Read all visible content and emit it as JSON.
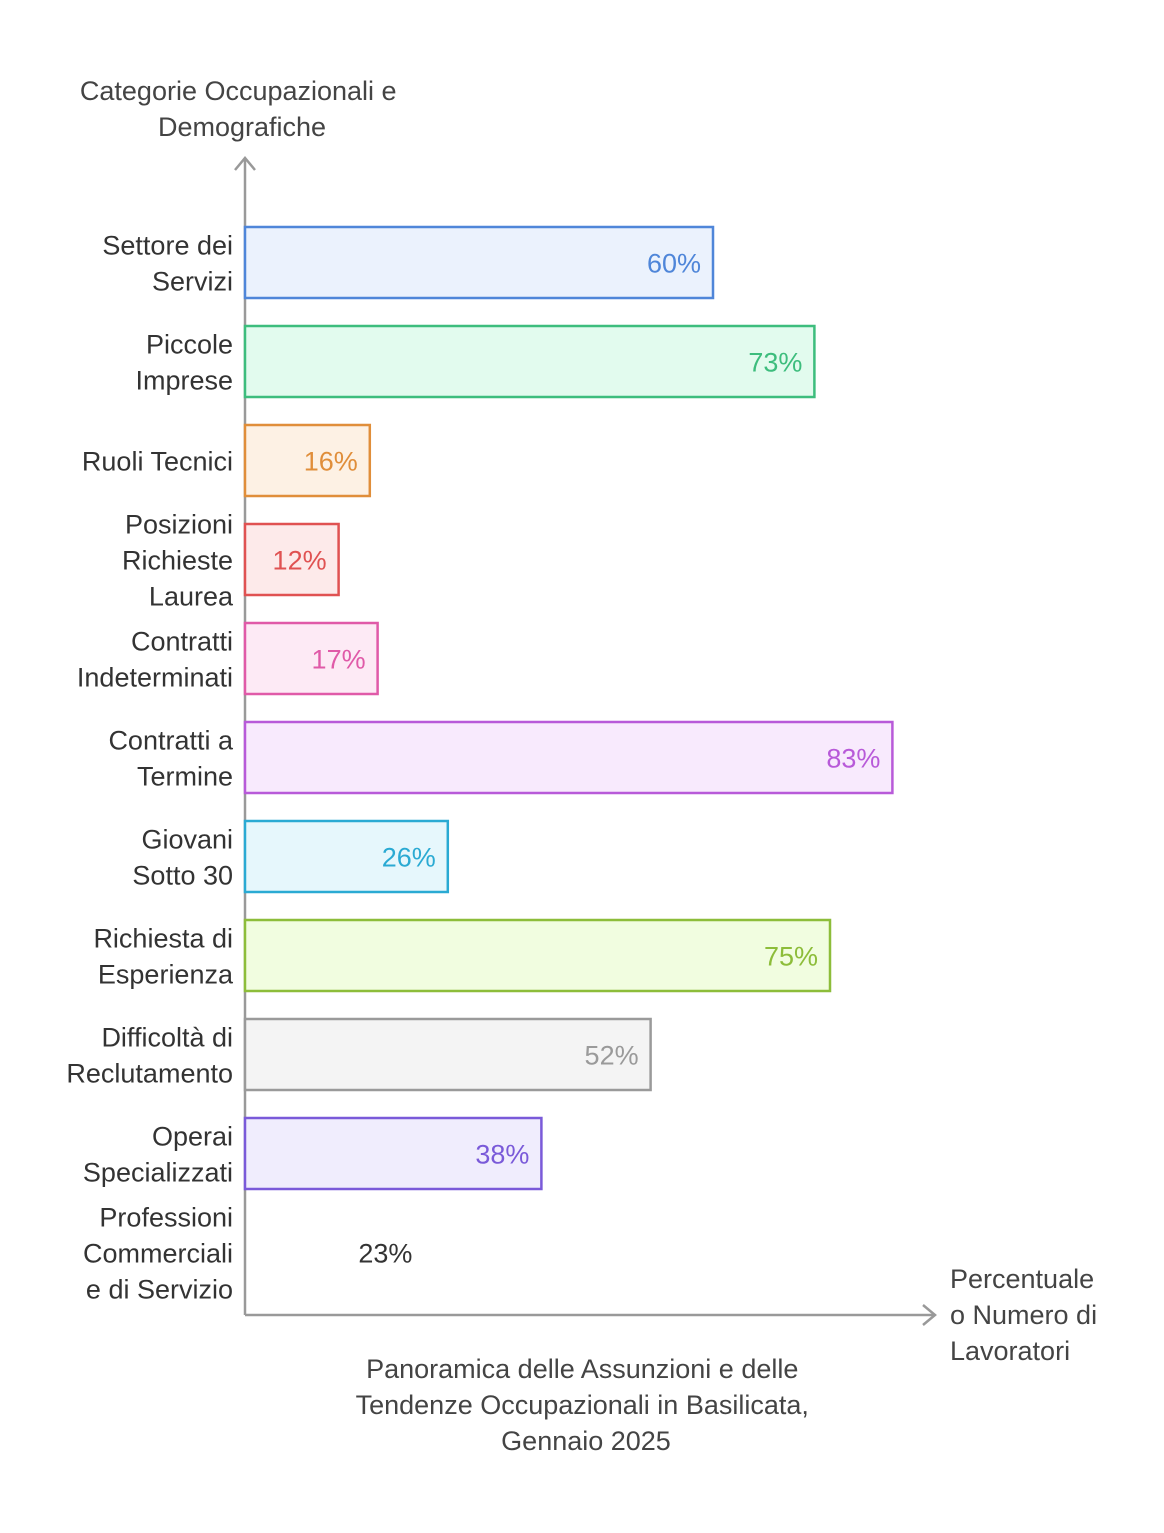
{
  "chart_data": {
    "type": "bar",
    "orientation": "horizontal",
    "title": "Panoramica delle Assunzioni e delle Tendenze Occupazionali in Basilicata, Gennaio 2025",
    "title_lines": [
      "Panoramica delle Assunzioni e delle",
      "Tendenze Occupazionali in Basilicata,",
      "Gennaio 2025"
    ],
    "ylabel_lines": [
      "Categorie Occupazionali e",
      "Demografiche"
    ],
    "xlabel_lines": [
      "Percentuale",
      "o Numero di",
      "Lavoratori"
    ],
    "xlim": [
      0,
      100
    ],
    "grid": false,
    "categories": [
      {
        "lines": [
          "Settore dei",
          "Servizi"
        ],
        "value": 60,
        "label": "60%",
        "stroke": "#4f86d9",
        "fill": "#ebf2fd"
      },
      {
        "lines": [
          "Piccole",
          "Imprese"
        ],
        "value": 73,
        "label": "73%",
        "stroke": "#3dbd7d",
        "fill": "#e2fbee"
      },
      {
        "lines": [
          "Ruoli Tecnici"
        ],
        "value": 16,
        "label": "16%",
        "stroke": "#e08e3a",
        "fill": "#fdf1e4"
      },
      {
        "lines": [
          "Posizioni",
          "Richieste",
          "Laurea"
        ],
        "value": 12,
        "label": "12%",
        "stroke": "#e05252",
        "fill": "#fdeaea"
      },
      {
        "lines": [
          "Contratti",
          "Indeterminati"
        ],
        "value": 17,
        "label": "17%",
        "stroke": "#e05aa8",
        "fill": "#fdeaf5"
      },
      {
        "lines": [
          "Contratti a",
          "Termine"
        ],
        "value": 83,
        "label": "83%",
        "stroke": "#b85ad9",
        "fill": "#f8eafd"
      },
      {
        "lines": [
          "Giovani",
          "Sotto 30"
        ],
        "value": 26,
        "label": "26%",
        "stroke": "#2aaad3",
        "fill": "#e6f7fc"
      },
      {
        "lines": [
          "Richiesta di",
          "Esperienza"
        ],
        "value": 75,
        "label": "75%",
        "stroke": "#8dbd3a",
        "fill": "#f1fde0"
      },
      {
        "lines": [
          "Difficoltà di",
          "Reclutamento"
        ],
        "value": 52,
        "label": "52%",
        "stroke": "#9a9a9a",
        "fill": "#f4f4f4"
      },
      {
        "lines": [
          "Operai",
          "Specializzati"
        ],
        "value": 38,
        "label": "38%",
        "stroke": "#7a5ad9",
        "fill": "#f0edfd"
      },
      {
        "lines": [
          "Professioni",
          "Commerciali",
          "e di Servizio"
        ],
        "value": 23,
        "label": "23%",
        "stroke": "none",
        "fill": "none",
        "label_color": "#333333"
      }
    ],
    "colors": {
      "axis": "#999999"
    }
  }
}
